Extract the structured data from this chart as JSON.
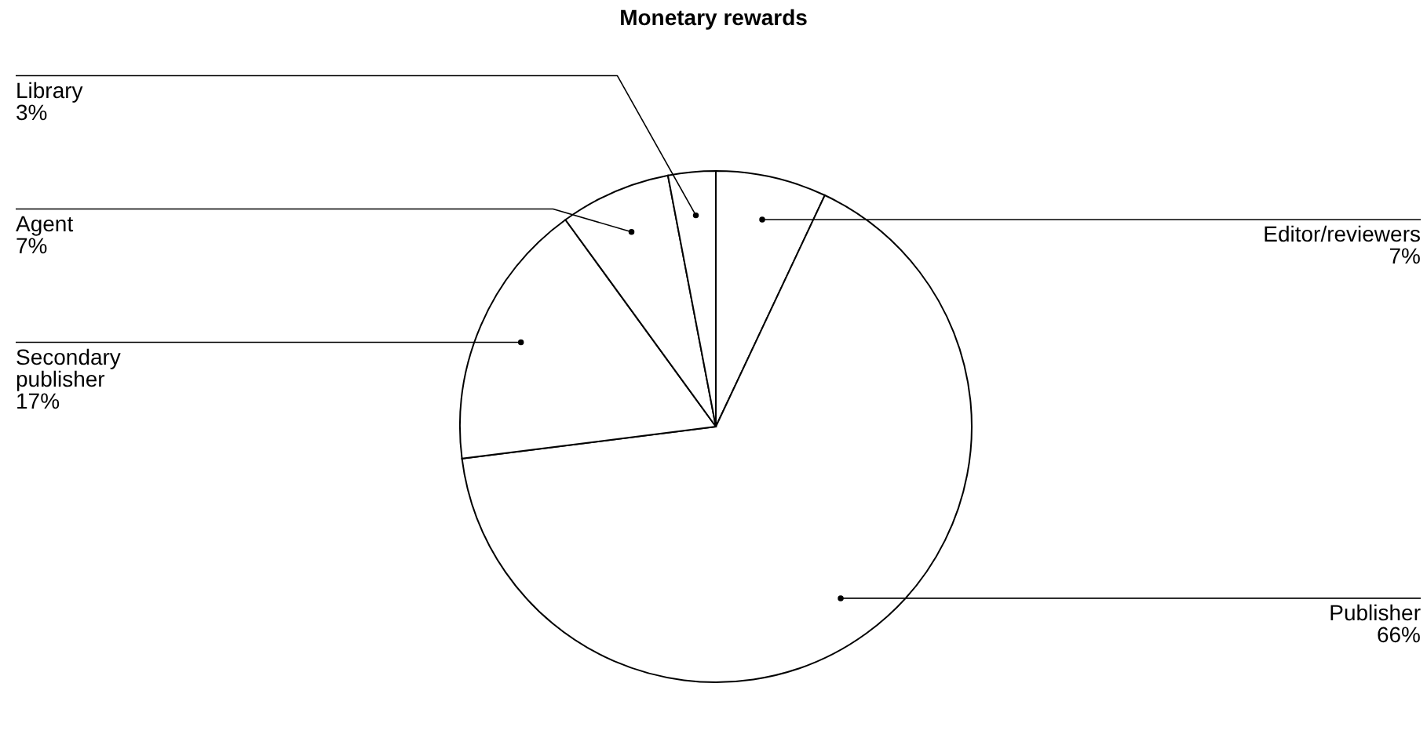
{
  "chart_data": {
    "type": "pie",
    "title": "Monetary rewards",
    "categories": [
      "Editor/reviewers",
      "Publisher",
      "Secondary publisher",
      "Agent",
      "Library"
    ],
    "values": [
      7,
      66,
      17,
      7,
      3
    ],
    "value_labels": [
      "7%",
      "66%",
      "17%",
      "7%",
      "3%"
    ],
    "colors": [
      "#ffffff",
      "#ffffff",
      "#ffffff",
      "#ffffff",
      "#ffffff"
    ]
  }
}
